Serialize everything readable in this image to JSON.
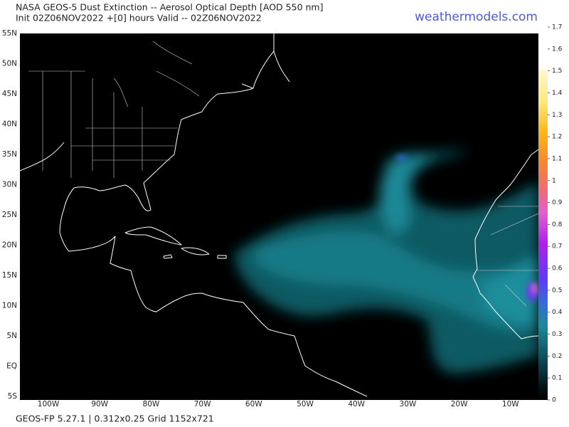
{
  "header": {
    "title": "NASA GEOS-5 Dust Extinction -- Aerosol Optical Depth [AOD 550 nm]",
    "subtitle": "Init 02Z06NOV2022 +[0] hours Valid -- 02Z06NOV2022",
    "brand": "weathermodels.com"
  },
  "map": {
    "lat_labels": [
      "55N",
      "50N",
      "45N",
      "40N",
      "35N",
      "30N",
      "25N",
      "20N",
      "15N",
      "10N",
      "5N",
      "EQ",
      "5S"
    ],
    "lon_labels": [
      "100W",
      "90W",
      "80W",
      "70W",
      "60W",
      "50W",
      "40W",
      "30W",
      "20W",
      "10W"
    ]
  },
  "colorbar": {
    "lim": [
      0,
      1.7
    ],
    "ticks": [
      0,
      0.1,
      0.2,
      0.3,
      0.4,
      0.5,
      0.6,
      0.7,
      0.8,
      0.9,
      1,
      1.1,
      1.2,
      1.3,
      1.4,
      1.5,
      1.6,
      1.7
    ]
  },
  "footer": "GEOS-FP 5.27.1 | 0.312x0.25 Grid 1152x721"
}
